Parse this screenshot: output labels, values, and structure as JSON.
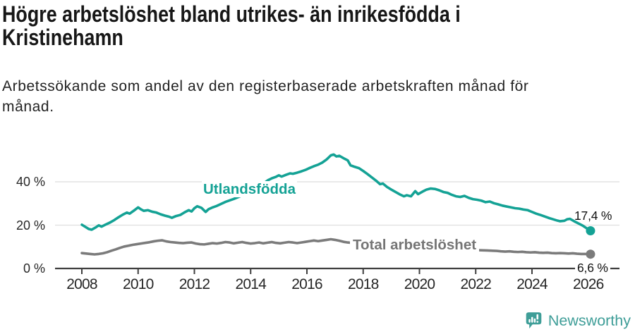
{
  "header": {
    "title_lines": [
      "Högre arbetslöshet bland utrikes- än inrikesfödda i",
      "Kristinehamn"
    ],
    "subtitle_lines": [
      "Arbetssökande som andel av den registerbaserade arbetskraften månad för",
      "månad."
    ]
  },
  "chart_data": {
    "type": "line",
    "title": "Högre arbetslöshet bland utrikes- än inrikesfödda i Kristinehamn",
    "subtitle": "Arbetssökande som andel av den registerbaserade arbetskraften månad för månad.",
    "xlabel": "",
    "ylabel": "",
    "xlim": [
      2007.8,
      2026.4
    ],
    "ylim": [
      0,
      56
    ],
    "grid": "horizontal",
    "legend_position": "inline-labels",
    "x_ticks": [
      2008,
      2010,
      2012,
      2014,
      2016,
      2018,
      2020,
      2022,
      2024,
      2026
    ],
    "y_ticks": [
      {
        "value": 0,
        "label": "0 %"
      },
      {
        "value": 20,
        "label": "20 %"
      },
      {
        "value": 40,
        "label": "40 %"
      }
    ],
    "style": {
      "grid_color": "#dedede",
      "axis_color": "#3f3f3f",
      "tick_text_color": "#262626"
    },
    "series": [
      {
        "name": "Utlandsfödda",
        "color": "#14a295",
        "end_label": "17,4 %",
        "end_value": 17.4,
        "x": [
          2008.0,
          2008.1,
          2008.25,
          2008.35,
          2008.5,
          2008.6,
          2008.7,
          2008.85,
          2009.0,
          2009.15,
          2009.3,
          2009.45,
          2009.6,
          2009.7,
          2009.85,
          2010.0,
          2010.1,
          2010.2,
          2010.35,
          2010.5,
          2010.65,
          2010.8,
          2010.95,
          2011.1,
          2011.2,
          2011.35,
          2011.5,
          2011.65,
          2011.8,
          2011.9,
          2012.0,
          2012.1,
          2012.25,
          2012.4,
          2012.5,
          2012.65,
          2012.8,
          2012.95,
          2013.1,
          2013.25,
          2013.4,
          2013.55,
          2013.7,
          2013.85,
          2014.0,
          2014.15,
          2014.3,
          2014.45,
          2014.6,
          2014.75,
          2014.9,
          2015.0,
          2015.1,
          2015.25,
          2015.4,
          2015.5,
          2015.65,
          2015.8,
          2015.95,
          2016.1,
          2016.25,
          2016.4,
          2016.55,
          2016.7,
          2016.85,
          2016.95,
          2017.05,
          2017.15,
          2017.3,
          2017.45,
          2017.55,
          2017.7,
          2017.85,
          2018.0,
          2018.15,
          2018.3,
          2018.45,
          2018.6,
          2018.7,
          2018.85,
          2019.0,
          2019.15,
          2019.3,
          2019.45,
          2019.55,
          2019.7,
          2019.85,
          2019.95,
          2020.1,
          2020.25,
          2020.4,
          2020.55,
          2020.7,
          2020.85,
          2021.0,
          2021.15,
          2021.3,
          2021.45,
          2021.6,
          2021.75,
          2021.9,
          2022.05,
          2022.2,
          2022.35,
          2022.5,
          2022.65,
          2022.8,
          2022.95,
          2023.1,
          2023.25,
          2023.4,
          2023.55,
          2023.7,
          2023.85,
          2024.0,
          2024.15,
          2024.3,
          2024.45,
          2024.6,
          2024.75,
          2024.9,
          2025.0,
          2025.15,
          2025.25,
          2025.35,
          2025.5,
          2025.65,
          2025.8,
          2025.95,
          2026.08
        ],
        "values": [
          20.2,
          19.4,
          18.2,
          17.9,
          19.0,
          19.9,
          19.3,
          20.3,
          21.2,
          22.3,
          23.6,
          24.8,
          25.8,
          25.3,
          26.7,
          28.2,
          27.3,
          26.6,
          26.9,
          26.2,
          25.8,
          25.0,
          24.4,
          23.9,
          23.4,
          24.2,
          24.7,
          25.9,
          26.9,
          26.3,
          27.8,
          28.7,
          28.0,
          26.1,
          27.3,
          28.2,
          28.9,
          29.8,
          30.7,
          31.4,
          32.1,
          32.9,
          33.7,
          34.5,
          35.5,
          36.6,
          37.9,
          39.1,
          40.6,
          41.6,
          42.3,
          43.0,
          42.4,
          43.2,
          43.9,
          43.7,
          44.2,
          44.8,
          45.5,
          46.4,
          47.2,
          47.9,
          48.9,
          50.3,
          52.2,
          52.6,
          51.7,
          52.0,
          50.9,
          49.9,
          47.6,
          46.9,
          46.3,
          45.0,
          43.6,
          42.1,
          40.6,
          38.9,
          39.2,
          37.6,
          36.4,
          35.3,
          34.2,
          33.3,
          33.8,
          33.3,
          35.7,
          34.3,
          35.4,
          36.4,
          36.9,
          36.7,
          36.1,
          35.3,
          34.9,
          34.0,
          33.3,
          33.0,
          33.5,
          32.6,
          32.0,
          31.7,
          31.3,
          30.6,
          30.9,
          30.1,
          29.6,
          29.0,
          28.6,
          28.2,
          27.8,
          27.6,
          27.2,
          26.9,
          26.1,
          25.3,
          24.7,
          24.0,
          23.3,
          22.7,
          22.1,
          21.8,
          22.0,
          22.7,
          22.9,
          21.8,
          20.8,
          19.8,
          18.5,
          17.4
        ]
      },
      {
        "name": "Total arbetslöshet",
        "color": "#7b7b7b",
        "end_label": "6,6 %",
        "end_value": 6.6,
        "x": [
          2008.0,
          2008.15,
          2008.3,
          2008.45,
          2008.6,
          2008.75,
          2008.9,
          2009.05,
          2009.2,
          2009.35,
          2009.5,
          2009.65,
          2009.8,
          2009.95,
          2010.1,
          2010.25,
          2010.4,
          2010.55,
          2010.7,
          2010.85,
          2011.0,
          2011.15,
          2011.3,
          2011.45,
          2011.6,
          2011.75,
          2011.9,
          2012.05,
          2012.2,
          2012.35,
          2012.5,
          2012.65,
          2012.8,
          2012.95,
          2013.1,
          2013.25,
          2013.4,
          2013.55,
          2013.7,
          2013.85,
          2014.0,
          2014.15,
          2014.3,
          2014.45,
          2014.6,
          2014.75,
          2014.9,
          2015.05,
          2015.2,
          2015.35,
          2015.5,
          2015.65,
          2015.8,
          2015.95,
          2016.1,
          2016.25,
          2016.4,
          2016.55,
          2016.7,
          2016.85,
          2017.0,
          2017.15,
          2017.3,
          2017.45,
          2017.6,
          2017.8,
          2018.0,
          2018.2,
          2018.4,
          2018.6,
          2018.8,
          2019.0,
          2019.2,
          2019.4,
          2019.6,
          2019.8,
          2020.0,
          2020.2,
          2020.4,
          2020.6,
          2020.8,
          2021.0,
          2021.2,
          2021.4,
          2021.6,
          2021.8,
          2022.0,
          2022.2,
          2022.4,
          2022.6,
          2022.75,
          2022.9,
          2023.05,
          2023.2,
          2023.35,
          2023.5,
          2023.65,
          2023.8,
          2023.95,
          2024.1,
          2024.25,
          2024.4,
          2024.55,
          2024.7,
          2024.85,
          2025.0,
          2025.15,
          2025.3,
          2025.45,
          2025.6,
          2025.75,
          2025.9,
          2026.08
        ],
        "values": [
          7.1,
          6.9,
          6.7,
          6.5,
          6.7,
          7.0,
          7.5,
          8.2,
          8.8,
          9.5,
          10.1,
          10.5,
          10.9,
          11.2,
          11.5,
          11.8,
          12.1,
          12.5,
          12.8,
          13.0,
          12.5,
          12.2,
          12.0,
          11.8,
          11.7,
          11.9,
          12.0,
          11.5,
          11.2,
          11.1,
          11.4,
          11.7,
          11.5,
          11.8,
          12.2,
          12.0,
          11.6,
          11.9,
          12.2,
          11.8,
          11.5,
          11.7,
          12.0,
          11.6,
          11.9,
          12.2,
          11.8,
          11.6,
          11.9,
          12.2,
          12.0,
          11.7,
          12.0,
          12.3,
          12.6,
          12.9,
          12.6,
          12.9,
          13.2,
          13.5,
          13.2,
          12.8,
          12.3,
          12.0,
          11.8,
          11.4,
          11.1,
          10.9,
          10.7,
          10.4,
          10.2,
          10.1,
          9.9,
          9.8,
          9.7,
          9.8,
          10.0,
          10.3,
          10.4,
          10.2,
          9.9,
          9.6,
          9.3,
          9.0,
          8.8,
          8.6,
          8.5,
          8.4,
          8.3,
          8.2,
          8.1,
          7.9,
          7.8,
          7.9,
          7.7,
          7.6,
          7.7,
          7.5,
          7.4,
          7.5,
          7.3,
          7.2,
          7.3,
          7.1,
          7.0,
          7.1,
          7.0,
          6.9,
          7.0,
          6.8,
          6.7,
          6.7,
          6.6
        ]
      }
    ]
  },
  "footer": {
    "brand": "Newsworthy",
    "brand_color": "#3f9e98",
    "logo_icon": "newsworthy-bars-exclamation-icon"
  }
}
